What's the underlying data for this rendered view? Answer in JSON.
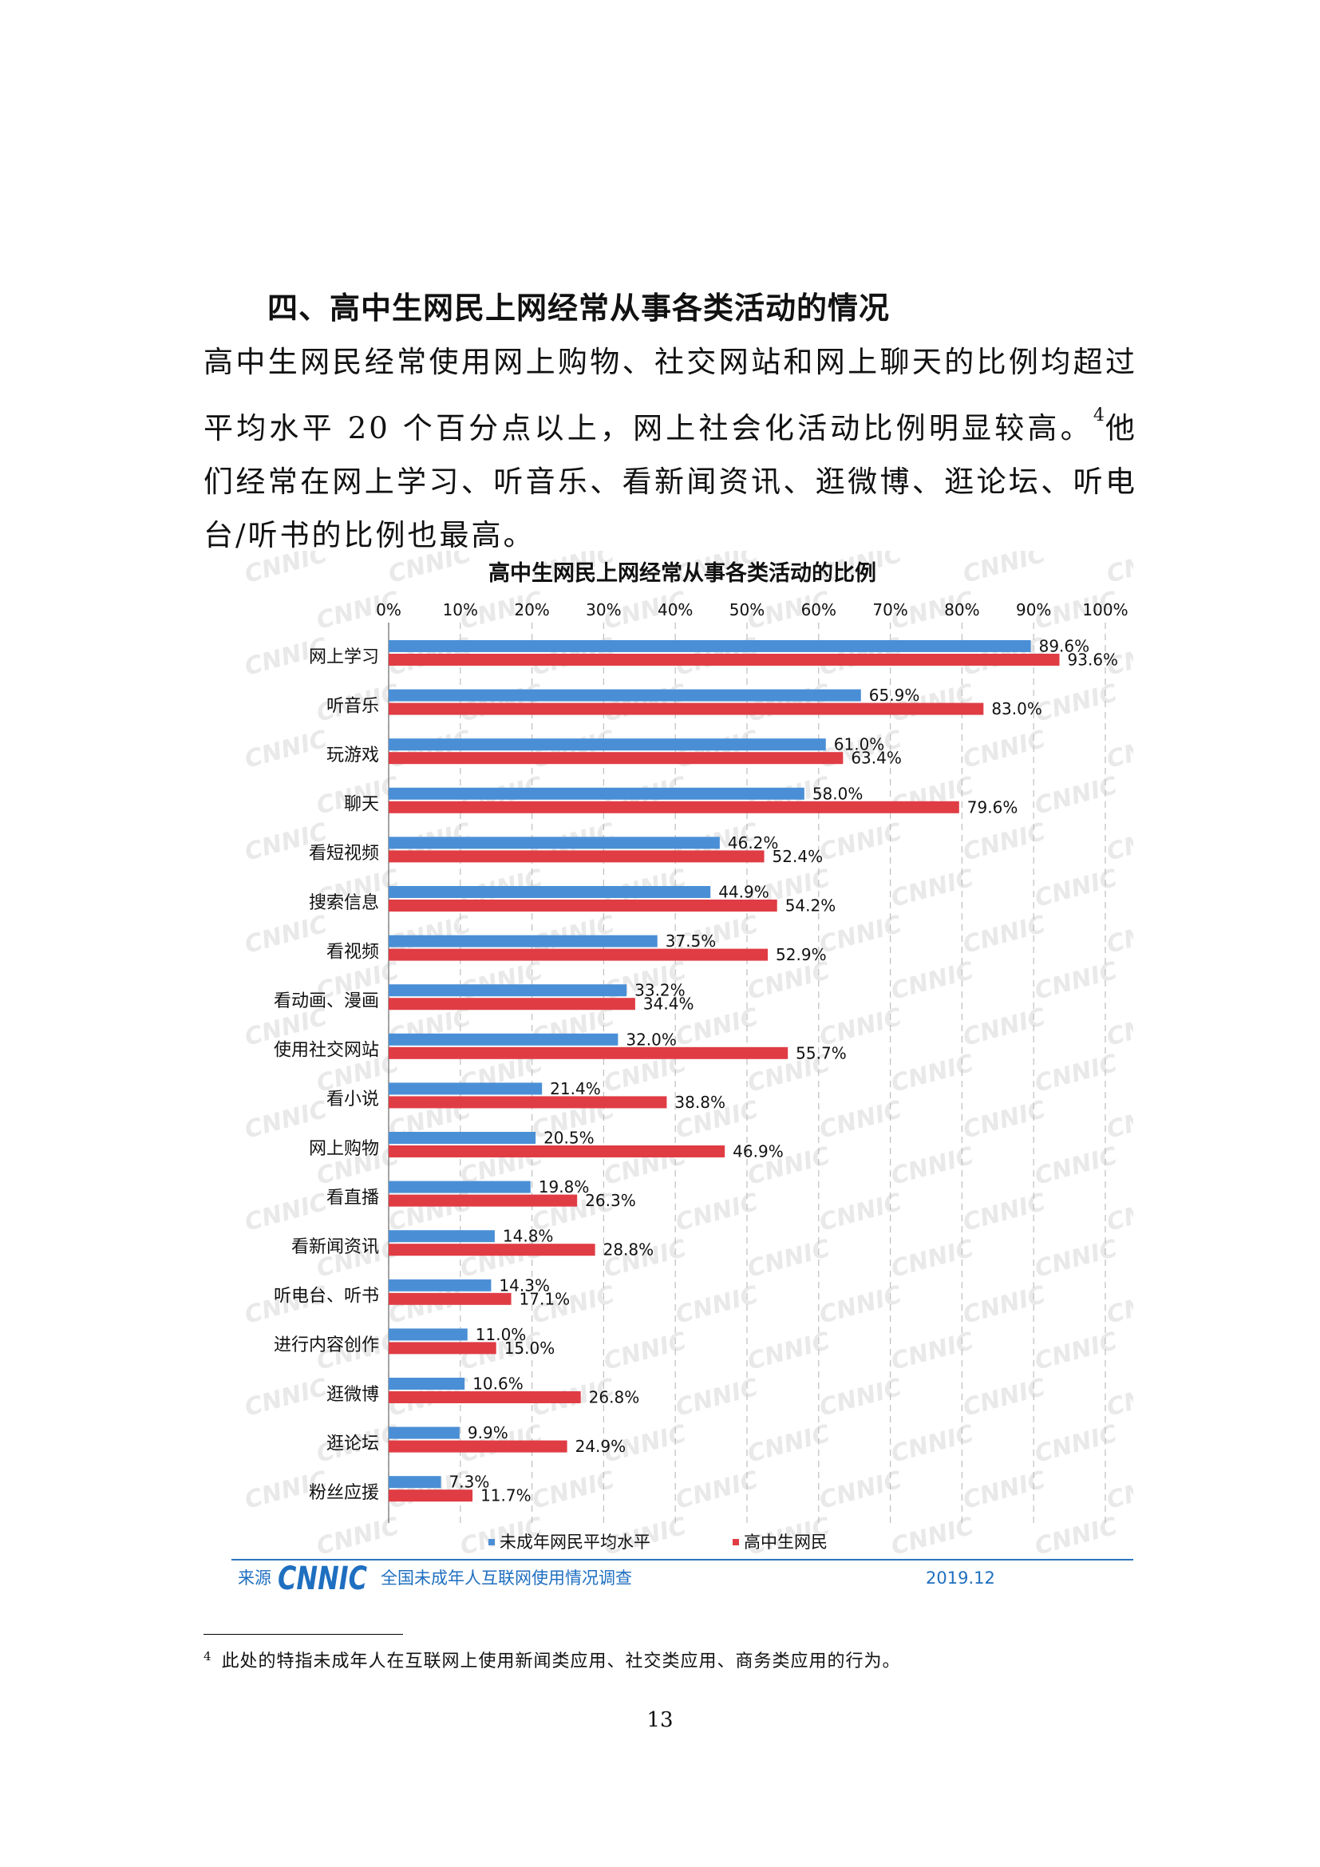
{
  "section": {
    "heading": "四、高中生网民上网经常从事各类活动的情况",
    "paragraph": "高中生网民经常使用网上购物、社交网站和网上聊天的比例均超过平均水平 20 个百分点以上，网上社会化活动比例明显较高。",
    "footnote_ref": "4",
    "paragraph_cont": "他们经常在网上学习、听音乐、看新闻资讯、逛微博、逛论坛、听电台/听书的比例也最高。"
  },
  "chart_data": {
    "type": "bar",
    "orientation": "horizontal",
    "title": "高中生网民上网经常从事各类活动的比例",
    "xlim": [
      0,
      100
    ],
    "x_ticks": [
      "0%",
      "10%",
      "20%",
      "30%",
      "40%",
      "50%",
      "60%",
      "70%",
      "80%",
      "90%",
      "100%"
    ],
    "grid": true,
    "legend_position": "bottom",
    "categories": [
      "网上学习",
      "听音乐",
      "玩游戏",
      "聊天",
      "看短视频",
      "搜索信息",
      "看视频",
      "看动画、漫画",
      "使用社交网站",
      "看小说",
      "网上购物",
      "看直播",
      "看新闻资讯",
      "听电台、听书",
      "进行内容创作",
      "逛微博",
      "逛论坛",
      "粉丝应援"
    ],
    "series": [
      {
        "name": "未成年网民平均水平",
        "color": "#4a8fd6",
        "values": [
          89.6,
          65.9,
          61.0,
          58.0,
          46.2,
          44.9,
          37.5,
          33.2,
          32.0,
          21.4,
          20.5,
          19.8,
          14.8,
          14.3,
          11.0,
          10.6,
          9.9,
          7.3
        ],
        "labels": [
          "89.6%",
          "65.9%",
          "61.0%",
          "58.0%",
          "46.2%",
          "44.9%",
          "37.5%",
          "33.2%",
          "32.0%",
          "21.4%",
          "20.5%",
          "19.8%",
          "14.8%",
          "14.3%",
          "11.0%",
          "10.6%",
          "9.9%",
          "7.3%"
        ]
      },
      {
        "name": "高中生网民",
        "color": "#e03c44",
        "values": [
          93.6,
          83.0,
          63.4,
          79.6,
          52.4,
          54.2,
          52.9,
          34.4,
          55.7,
          38.8,
          46.9,
          26.3,
          28.8,
          17.1,
          15.0,
          26.8,
          24.9,
          11.7
        ],
        "labels": [
          "93.6%",
          "83.0%",
          "63.4%",
          "79.6%",
          "52.4%",
          "54.2%",
          "52.9%",
          "34.4%",
          "55.7%",
          "38.8%",
          "46.9%",
          "26.3%",
          "28.8%",
          "17.1%",
          "15.0%",
          "26.8%",
          "24.9%",
          "11.7%"
        ]
      }
    ],
    "source_label": "来源",
    "source_logo": "CNNIC",
    "source_name": "全国未成年人互联网使用情况调查",
    "date": "2019.12",
    "watermark": "CNNIC"
  },
  "footnote": {
    "number": "4",
    "text": "此处的特指未成年人在互联网上使用新闻类应用、社交类应用、商务类应用的行为。"
  },
  "page_number": "13"
}
